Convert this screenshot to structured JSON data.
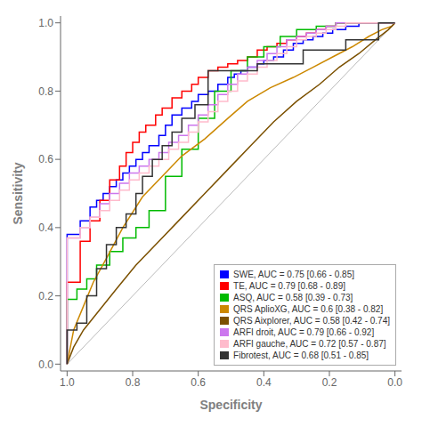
{
  "chart_data": {
    "type": "line",
    "xlabel": "Specificity",
    "ylabel": "Sensitivity",
    "xlim": [
      1.02,
      -0.02
    ],
    "ylim": [
      -0.02,
      1.02
    ],
    "xticks": [
      {
        "value": 1.0,
        "label": "1.0"
      },
      0.8,
      0.6,
      0.4,
      0.2,
      {
        "value": 0.0,
        "label": "0.0"
      }
    ],
    "yticks": [
      {
        "value": 0.0,
        "label": "0.0"
      },
      0.2,
      0.4,
      0.6,
      0.8,
      {
        "value": 1.0,
        "label": "1.0"
      }
    ],
    "grid": false,
    "legend": "lower right",
    "series": [
      {
        "color": "#bbbbbb",
        "x": [
          1.0,
          0.0
        ],
        "values": [
          0.0,
          1.0
        ]
      },
      {
        "name": "SWE, AUC = 0.75 [0.66 - 0.85]",
        "color": "#0000ff",
        "x": [
          1.0,
          1.0,
          0.96,
          0.96,
          0.93,
          0.93,
          0.91,
          0.91,
          0.89,
          0.89,
          0.87,
          0.87,
          0.85,
          0.85,
          0.83,
          0.83,
          0.81,
          0.81,
          0.79,
          0.79,
          0.77,
          0.77,
          0.75,
          0.75,
          0.72,
          0.72,
          0.7,
          0.7,
          0.68,
          0.68,
          0.65,
          0.65,
          0.62,
          0.62,
          0.6,
          0.6,
          0.57,
          0.57,
          0.54,
          0.54,
          0.51,
          0.51,
          0.49,
          0.49,
          0.47,
          0.47,
          0.45,
          0.45,
          0.42,
          0.42,
          0.4,
          0.4,
          0.37,
          0.37,
          0.34,
          0.34,
          0.31,
          0.31,
          0.28,
          0.28,
          0.25,
          0.25,
          0.22,
          0.22,
          0.19,
          0.19,
          0.15,
          0.15,
          0.11,
          0.11,
          0.07,
          0.07,
          0.03,
          0.03,
          0.0,
          0.0
        ],
        "values": [
          0.0,
          0.38,
          0.38,
          0.42,
          0.42,
          0.46,
          0.46,
          0.48,
          0.48,
          0.5,
          0.5,
          0.52,
          0.52,
          0.54,
          0.54,
          0.56,
          0.56,
          0.58,
          0.58,
          0.6,
          0.6,
          0.62,
          0.62,
          0.64,
          0.64,
          0.67,
          0.67,
          0.7,
          0.7,
          0.73,
          0.73,
          0.75,
          0.75,
          0.77,
          0.77,
          0.79,
          0.79,
          0.8,
          0.8,
          0.82,
          0.82,
          0.84,
          0.84,
          0.85,
          0.85,
          0.86,
          0.86,
          0.87,
          0.87,
          0.88,
          0.88,
          0.89,
          0.89,
          0.9,
          0.9,
          0.92,
          0.92,
          0.94,
          0.94,
          0.95,
          0.95,
          0.96,
          0.96,
          0.97,
          0.97,
          0.98,
          0.98,
          0.99,
          0.99,
          1.0,
          1.0,
          1.0,
          1.0,
          1.0,
          1.0,
          1.0
        ]
      },
      {
        "name": "TE, AUC = 0.79 [0.68 - 0.89]",
        "color": "#ff0000",
        "x": [
          1.0,
          1.0,
          0.96,
          0.96,
          0.93,
          0.93,
          0.9,
          0.9,
          0.87,
          0.87,
          0.84,
          0.84,
          0.82,
          0.82,
          0.8,
          0.8,
          0.78,
          0.78,
          0.76,
          0.76,
          0.73,
          0.73,
          0.71,
          0.71,
          0.68,
          0.68,
          0.65,
          0.65,
          0.62,
          0.62,
          0.6,
          0.6,
          0.57,
          0.57,
          0.54,
          0.54,
          0.51,
          0.51,
          0.48,
          0.48,
          0.45,
          0.45,
          0.42,
          0.42,
          0.39,
          0.39,
          0.36,
          0.36,
          0.33,
          0.33,
          0.3,
          0.3,
          0.27,
          0.27,
          0.24,
          0.24,
          0.21,
          0.21,
          0.18,
          0.18,
          0.15,
          0.15,
          0.12,
          0.12,
          0.09,
          0.09,
          0.06,
          0.06,
          0.03,
          0.03,
          0.0,
          0.0
        ],
        "values": [
          0.0,
          0.24,
          0.24,
          0.36,
          0.36,
          0.42,
          0.42,
          0.48,
          0.48,
          0.54,
          0.54,
          0.58,
          0.58,
          0.62,
          0.62,
          0.65,
          0.65,
          0.68,
          0.68,
          0.7,
          0.7,
          0.73,
          0.73,
          0.75,
          0.75,
          0.78,
          0.78,
          0.8,
          0.8,
          0.82,
          0.82,
          0.84,
          0.84,
          0.86,
          0.86,
          0.87,
          0.87,
          0.88,
          0.88,
          0.89,
          0.89,
          0.9,
          0.9,
          0.92,
          0.92,
          0.93,
          0.93,
          0.94,
          0.94,
          0.95,
          0.95,
          0.96,
          0.96,
          0.97,
          0.97,
          0.98,
          0.98,
          0.99,
          0.99,
          1.0,
          1.0,
          1.0,
          1.0,
          1.0,
          1.0,
          1.0,
          1.0,
          1.0,
          1.0,
          1.0,
          1.0,
          1.0
        ]
      },
      {
        "name": "ASQ, AUC = 0.58 [0.39 - 0.73]",
        "color": "#00bb00",
        "x": [
          1.0,
          1.0,
          0.97,
          0.97,
          0.94,
          0.94,
          0.91,
          0.91,
          0.87,
          0.87,
          0.83,
          0.83,
          0.79,
          0.79,
          0.75,
          0.75,
          0.7,
          0.7,
          0.65,
          0.65,
          0.6,
          0.6,
          0.55,
          0.55,
          0.5,
          0.5,
          0.45,
          0.45,
          0.4,
          0.4,
          0.35,
          0.35,
          0.3,
          0.3,
          0.24,
          0.24,
          0.18,
          0.18,
          0.12,
          0.12,
          0.06,
          0.06,
          0.0,
          0.0
        ],
        "values": [
          0.0,
          0.19,
          0.19,
          0.22,
          0.22,
          0.25,
          0.25,
          0.29,
          0.29,
          0.33,
          0.33,
          0.37,
          0.37,
          0.4,
          0.4,
          0.45,
          0.45,
          0.55,
          0.55,
          0.63,
          0.63,
          0.72,
          0.72,
          0.8,
          0.8,
          0.86,
          0.86,
          0.9,
          0.9,
          0.93,
          0.93,
          0.96,
          0.96,
          0.98,
          0.98,
          0.99,
          0.99,
          1.0,
          1.0,
          1.0,
          1.0,
          1.0,
          1.0,
          1.0
        ]
      },
      {
        "name": "QRS ApliоXG, AUC = 0.6 [0.38 - 0.82]",
        "color": "#cc8800",
        "x": [
          1.0,
          0.98,
          0.95,
          0.92,
          0.88,
          0.83,
          0.77,
          0.71,
          0.65,
          0.58,
          0.51,
          0.45,
          0.38,
          0.31,
          0.25,
          0.19,
          0.13,
          0.08,
          0.04,
          0.01,
          0.0
        ],
        "values": [
          0.0,
          0.1,
          0.17,
          0.24,
          0.31,
          0.4,
          0.49,
          0.55,
          0.61,
          0.66,
          0.72,
          0.77,
          0.81,
          0.84,
          0.87,
          0.9,
          0.93,
          0.96,
          0.98,
          0.99,
          1.0
        ]
      },
      {
        "name": "QRS Aixplorer, AUC = 0.58 [0.42 - 0.74]",
        "color": "#7B5000",
        "x": [
          1.0,
          0.98,
          0.95,
          0.9,
          0.85,
          0.79,
          0.72,
          0.65,
          0.58,
          0.51,
          0.44,
          0.37,
          0.3,
          0.23,
          0.17,
          0.11,
          0.06,
          0.02,
          0.0
        ],
        "values": [
          0.0,
          0.05,
          0.1,
          0.16,
          0.22,
          0.29,
          0.36,
          0.43,
          0.5,
          0.57,
          0.64,
          0.71,
          0.77,
          0.82,
          0.87,
          0.91,
          0.95,
          0.98,
          1.0
        ]
      },
      {
        "name": "ARFI droit, AUC = 0.79 [0.66 - 0.92]",
        "color": "#cc77ee",
        "x": [
          1.0,
          1.0,
          0.96,
          0.96,
          0.93,
          0.93,
          0.9,
          0.9,
          0.87,
          0.87,
          0.84,
          0.84,
          0.81,
          0.81,
          0.78,
          0.78,
          0.75,
          0.75,
          0.72,
          0.72,
          0.69,
          0.69,
          0.66,
          0.66,
          0.63,
          0.63,
          0.6,
          0.6,
          0.57,
          0.57,
          0.54,
          0.54,
          0.51,
          0.51,
          0.48,
          0.48,
          0.45,
          0.45,
          0.42,
          0.42,
          0.39,
          0.39,
          0.36,
          0.36,
          0.33,
          0.33,
          0.3,
          0.3,
          0.27,
          0.27,
          0.24,
          0.24,
          0.21,
          0.21,
          0.18,
          0.18,
          0.15,
          0.15,
          0.12,
          0.12,
          0.08,
          0.08,
          0.04,
          0.04,
          0.0,
          0.0
        ],
        "values": [
          0.0,
          0.37,
          0.37,
          0.4,
          0.4,
          0.43,
          0.43,
          0.47,
          0.47,
          0.5,
          0.5,
          0.53,
          0.53,
          0.56,
          0.56,
          0.58,
          0.58,
          0.6,
          0.6,
          0.62,
          0.62,
          0.65,
          0.65,
          0.67,
          0.67,
          0.7,
          0.7,
          0.73,
          0.73,
          0.76,
          0.76,
          0.79,
          0.79,
          0.82,
          0.82,
          0.85,
          0.85,
          0.87,
          0.87,
          0.89,
          0.89,
          0.91,
          0.91,
          0.93,
          0.93,
          0.95,
          0.95,
          0.96,
          0.96,
          0.97,
          0.97,
          0.98,
          0.98,
          0.99,
          0.99,
          1.0,
          1.0,
          1.0,
          1.0,
          1.0,
          1.0,
          1.0,
          1.0,
          1.0,
          1.0,
          1.0
        ]
      },
      {
        "name": "ARFI gauche, AUC = 0.72 [0.57 - 0.87]",
        "color": "#ffbbcc",
        "x": [
          1.0,
          1.0,
          0.96,
          0.96,
          0.93,
          0.93,
          0.9,
          0.9,
          0.87,
          0.87,
          0.84,
          0.84,
          0.81,
          0.81,
          0.78,
          0.78,
          0.75,
          0.75,
          0.72,
          0.72,
          0.69,
          0.69,
          0.66,
          0.66,
          0.63,
          0.63,
          0.6,
          0.6,
          0.57,
          0.57,
          0.54,
          0.54,
          0.51,
          0.51,
          0.48,
          0.48,
          0.45,
          0.45,
          0.42,
          0.42,
          0.39,
          0.39,
          0.36,
          0.36,
          0.33,
          0.33,
          0.3,
          0.3,
          0.27,
          0.27,
          0.24,
          0.24,
          0.21,
          0.21,
          0.18,
          0.18,
          0.15,
          0.15,
          0.12,
          0.12,
          0.08,
          0.08,
          0.04,
          0.04,
          0.0,
          0.0
        ],
        "values": [
          0.0,
          0.37,
          0.37,
          0.4,
          0.4,
          0.43,
          0.43,
          0.45,
          0.45,
          0.48,
          0.48,
          0.51,
          0.51,
          0.54,
          0.54,
          0.56,
          0.56,
          0.58,
          0.58,
          0.6,
          0.6,
          0.63,
          0.63,
          0.65,
          0.65,
          0.68,
          0.68,
          0.71,
          0.71,
          0.74,
          0.74,
          0.77,
          0.77,
          0.8,
          0.8,
          0.83,
          0.83,
          0.85,
          0.85,
          0.87,
          0.87,
          0.89,
          0.89,
          0.91,
          0.91,
          0.93,
          0.93,
          0.95,
          0.95,
          0.96,
          0.96,
          0.97,
          0.97,
          0.98,
          0.98,
          0.99,
          0.99,
          1.0,
          1.0,
          1.0,
          1.0,
          1.0,
          1.0,
          1.0,
          1.0,
          1.0
        ]
      },
      {
        "name": "Fibrotest, AUC = 0.68 [0.51 - 0.85]",
        "color": "#333333",
        "x": [
          1.0,
          1.0,
          0.97,
          0.97,
          0.94,
          0.94,
          0.91,
          0.91,
          0.88,
          0.88,
          0.85,
          0.85,
          0.82,
          0.82,
          0.79,
          0.79,
          0.77,
          0.77,
          0.74,
          0.74,
          0.71,
          0.71,
          0.68,
          0.68,
          0.65,
          0.65,
          0.61,
          0.61,
          0.57,
          0.57,
          0.57,
          0.57,
          0.42,
          0.42,
          0.42,
          0.42,
          0.28,
          0.28,
          0.15,
          0.15,
          0.05,
          0.05,
          0.0,
          0.0
        ],
        "values": [
          0.0,
          0.1,
          0.1,
          0.12,
          0.12,
          0.2,
          0.2,
          0.28,
          0.28,
          0.35,
          0.35,
          0.4,
          0.4,
          0.44,
          0.44,
          0.5,
          0.5,
          0.55,
          0.55,
          0.6,
          0.6,
          0.64,
          0.64,
          0.68,
          0.68,
          0.72,
          0.72,
          0.76,
          0.76,
          0.86,
          0.86,
          0.86,
          0.86,
          0.88,
          0.88,
          0.88,
          0.88,
          0.92,
          0.92,
          0.95,
          0.95,
          1.0,
          1.0,
          1.0
        ]
      }
    ]
  }
}
